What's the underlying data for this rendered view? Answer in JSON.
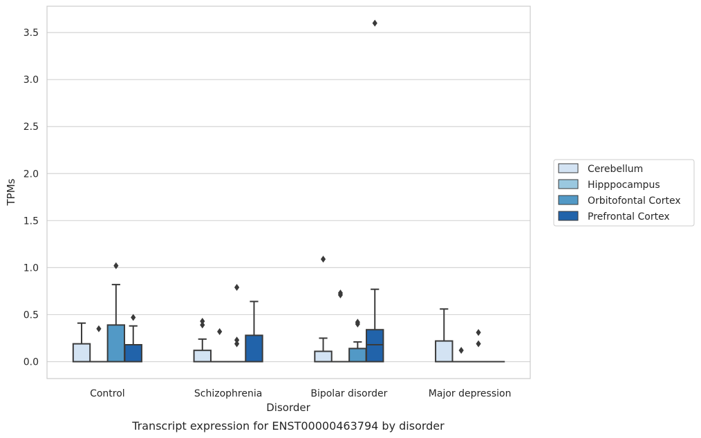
{
  "caption": "Transcript expression for ENST00000463794 by disorder",
  "chart_data": {
    "type": "box",
    "xlabel": "Disorder",
    "ylabel": "TPMs",
    "ylim": [
      -0.18,
      3.78
    ],
    "yticks": [
      "0.0",
      "0.5",
      "1.0",
      "1.5",
      "2.0",
      "2.5",
      "3.0",
      "3.5"
    ],
    "grid": "horizontal",
    "legend_position": "right",
    "categories": [
      "Control",
      "Schizophrenia",
      "Bipolar disorder",
      "Major depression"
    ],
    "series": [
      {
        "name": "Cerebellum",
        "color": "#d3e3f3",
        "boxes": [
          {
            "whisker_low": 0,
            "q1": 0,
            "median": 0,
            "q3": 0.19,
            "whisker_high": 0.41,
            "outliers": []
          },
          {
            "whisker_low": 0,
            "q1": 0,
            "median": 0,
            "q3": 0.12,
            "whisker_high": 0.24,
            "outliers": [
              0.39,
              0.43
            ]
          },
          {
            "whisker_low": 0,
            "q1": 0,
            "median": 0,
            "q3": 0.11,
            "whisker_high": 0.25,
            "outliers": [
              1.09
            ]
          },
          {
            "whisker_low": 0,
            "q1": 0,
            "median": 0,
            "q3": 0.22,
            "whisker_high": 0.56,
            "outliers": []
          }
        ]
      },
      {
        "name": "Hipppocampus",
        "color": "#9ac8e0",
        "boxes": [
          {
            "whisker_low": 0,
            "q1": 0,
            "median": 0,
            "q3": 0,
            "whisker_high": 0,
            "outliers": [
              0.35
            ]
          },
          {
            "whisker_low": 0,
            "q1": 0,
            "median": 0,
            "q3": 0,
            "whisker_high": 0,
            "outliers": [
              0.32
            ]
          },
          {
            "whisker_low": 0,
            "q1": 0,
            "median": 0,
            "q3": 0,
            "whisker_high": 0,
            "outliers": [
              0.71,
              0.73
            ]
          },
          {
            "whisker_low": 0,
            "q1": 0,
            "median": 0,
            "q3": 0,
            "whisker_high": 0,
            "outliers": [
              0.12
            ]
          }
        ]
      },
      {
        "name": "Orbitofontal Cortex",
        "color": "#5299c6",
        "boxes": [
          {
            "whisker_low": 0,
            "q1": 0,
            "median": 0,
            "q3": 0.39,
            "whisker_high": 0.82,
            "outliers": [
              1.02
            ]
          },
          {
            "whisker_low": 0,
            "q1": 0,
            "median": 0,
            "q3": 0,
            "whisker_high": 0,
            "outliers": [
              0.19,
              0.23,
              0.79
            ]
          },
          {
            "whisker_low": 0,
            "q1": 0,
            "median": 0,
            "q3": 0.14,
            "whisker_high": 0.21,
            "outliers": [
              0.4,
              0.42
            ]
          },
          {
            "whisker_low": 0,
            "q1": 0,
            "median": 0,
            "q3": 0,
            "whisker_high": 0,
            "outliers": [
              0.19,
              0.31
            ]
          }
        ]
      },
      {
        "name": "Prefrontal Cortex",
        "color": "#2163aa",
        "boxes": [
          {
            "whisker_low": 0,
            "q1": 0,
            "median": 0,
            "q3": 0.18,
            "whisker_high": 0.38,
            "outliers": [
              0.47
            ]
          },
          {
            "whisker_low": 0,
            "q1": 0,
            "median": 0,
            "q3": 0.28,
            "whisker_high": 0.64,
            "outliers": []
          },
          {
            "whisker_low": 0,
            "q1": 0,
            "median": 0.18,
            "q3": 0.34,
            "whisker_high": 0.77,
            "outliers": [
              3.6
            ]
          },
          {
            "whisker_low": 0,
            "q1": 0,
            "median": 0,
            "q3": 0,
            "whisker_high": 0,
            "outliers": []
          }
        ]
      }
    ]
  }
}
